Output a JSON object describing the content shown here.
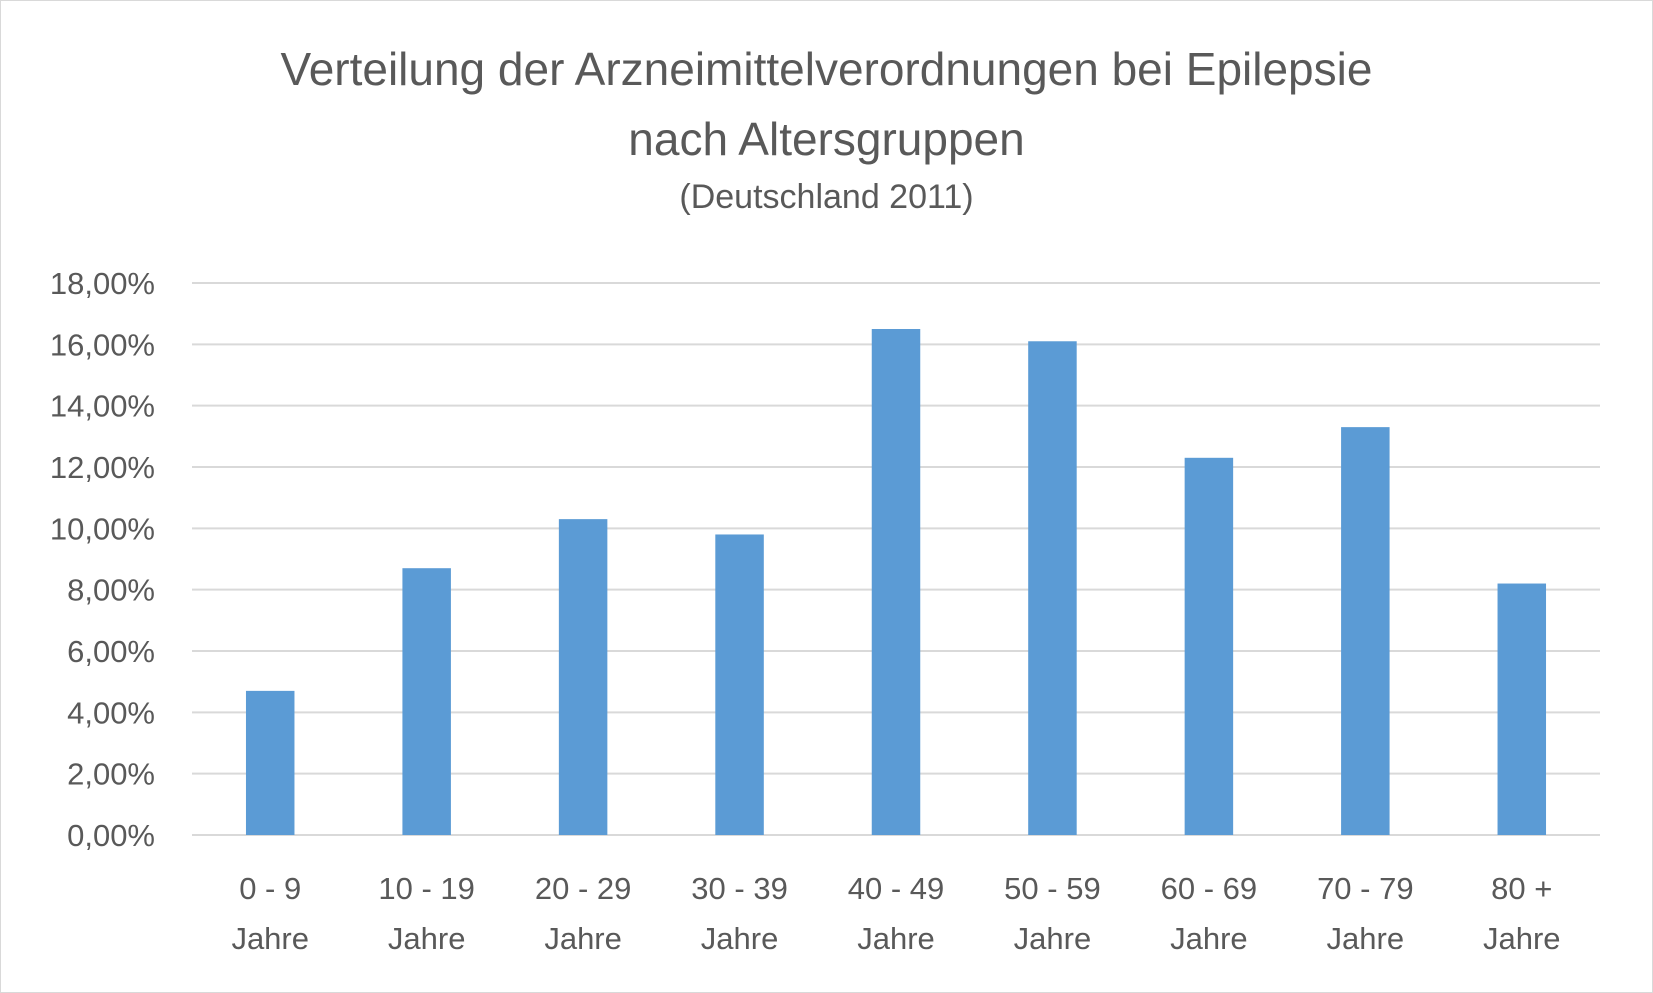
{
  "chart_data": {
    "type": "bar",
    "title_line1": "Verteilung der Arzneimittelverordnungen bei Epilepsie",
    "title_line2": "nach Altersgruppen",
    "subtitle": "(Deutschland 2011)",
    "categories": [
      [
        "0 - 9",
        "Jahre"
      ],
      [
        "10 - 19",
        "Jahre"
      ],
      [
        "20 - 29",
        "Jahre"
      ],
      [
        "30 - 39",
        "Jahre"
      ],
      [
        "40 - 49",
        "Jahre"
      ],
      [
        "50 - 59",
        "Jahre"
      ],
      [
        "60 - 69",
        "Jahre"
      ],
      [
        "70 - 79",
        "Jahre"
      ],
      [
        "80 +",
        "Jahre"
      ]
    ],
    "values": [
      4.7,
      8.7,
      10.3,
      9.8,
      16.5,
      16.1,
      12.3,
      13.3,
      8.2
    ],
    "ylim": [
      0,
      18
    ],
    "yticks": [
      "0,00%",
      "2,00%",
      "4,00%",
      "6,00%",
      "8,00%",
      "10,00%",
      "12,00%",
      "14,00%",
      "16,00%",
      "18,00%"
    ],
    "bar_color": "#5b9bd5",
    "grid": true,
    "legend": "none"
  }
}
